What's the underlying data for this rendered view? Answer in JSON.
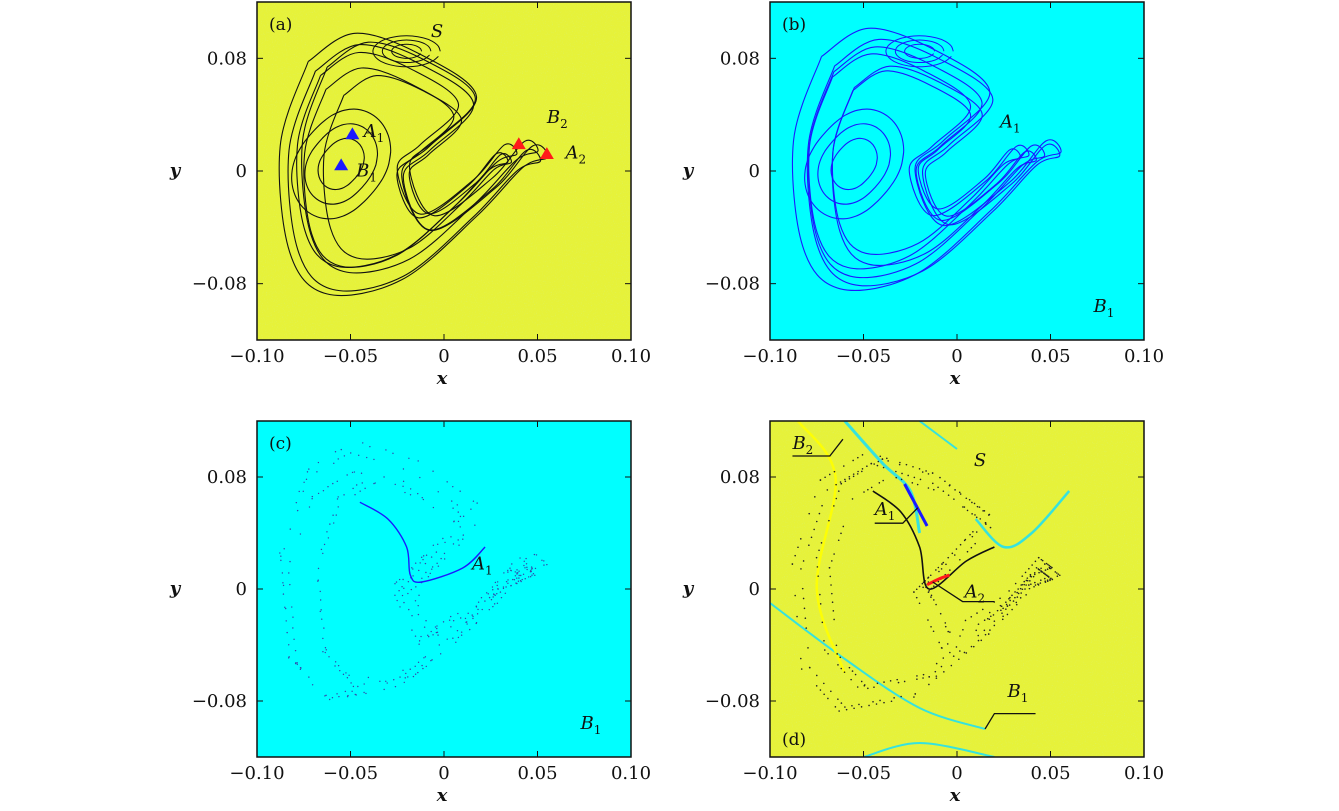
{
  "colors": {
    "yellow_basin": "#e6f23a",
    "cyan_basin": "#00ffff",
    "attractor_black": "#111111",
    "attractor_blue": "#1a1aff",
    "marker_blue": "#1a1aff",
    "marker_red": "#ff1a1a"
  },
  "chart_data": [
    {
      "type": "scatter",
      "panel_label": "(a)",
      "xlabel": "x",
      "ylabel": "y",
      "xlim": [
        -0.1,
        0.1
      ],
      "ylim": [
        -0.12,
        0.12
      ],
      "xticks": [
        -0.1,
        -0.05,
        0,
        0.05,
        0.1
      ],
      "xtick_labels": [
        "−0.10",
        "−0.05",
        "0",
        "0.05",
        "0.10"
      ],
      "yticks": [
        -0.08,
        0,
        0.08
      ],
      "ytick_labels": [
        "−0.08",
        "0",
        "0.08"
      ],
      "background": "yellow",
      "attractor": "black",
      "annotations": [
        {
          "text": "S",
          "sub": "",
          "x": -0.007,
          "y": 0.095
        },
        {
          "text": "A",
          "sub": "1",
          "x": -0.043,
          "y": 0.024
        },
        {
          "text": "B",
          "sub": "1",
          "x": -0.047,
          "y": -0.004
        },
        {
          "text": "B",
          "sub": "2",
          "x": 0.055,
          "y": 0.034
        },
        {
          "text": "A",
          "sub": "2",
          "x": 0.065,
          "y": 0.009
        }
      ],
      "markers": [
        {
          "x": -0.049,
          "y": 0.026,
          "color": "blue",
          "shape": "triangle"
        },
        {
          "x": -0.055,
          "y": 0.004,
          "color": "blue",
          "shape": "triangle"
        },
        {
          "x": 0.04,
          "y": 0.019,
          "color": "red",
          "shape": "triangle"
        },
        {
          "x": 0.055,
          "y": 0.012,
          "color": "red",
          "shape": "triangle"
        }
      ]
    },
    {
      "type": "scatter",
      "panel_label": "(b)",
      "xlabel": "x",
      "ylabel": "y",
      "xlim": [
        -0.1,
        0.1
      ],
      "ylim": [
        -0.12,
        0.12
      ],
      "xticks": [
        -0.1,
        -0.05,
        0,
        0.05,
        0.1
      ],
      "xtick_labels": [
        "−0.10",
        "−0.05",
        "0",
        "0.05",
        "0.10"
      ],
      "yticks": [
        -0.08,
        0,
        0.08
      ],
      "ytick_labels": [
        "−0.08",
        "0",
        "0.08"
      ],
      "background": "cyan",
      "attractor": "blue",
      "annotations": [
        {
          "text": "A",
          "sub": "1",
          "x": 0.023,
          "y": 0.031
        },
        {
          "text": "B",
          "sub": "1",
          "x": 0.073,
          "y": -0.1
        }
      ],
      "markers": []
    },
    {
      "type": "scatter",
      "panel_label": "(c)",
      "xlabel": "x",
      "ylabel": "y",
      "xlim": [
        -0.1,
        0.1
      ],
      "ylim": [
        -0.12,
        0.12
      ],
      "xticks": [
        -0.1,
        -0.05,
        0,
        0.05,
        0.1
      ],
      "xtick_labels": [
        "−0.10",
        "−0.05",
        "0",
        "0.05",
        "0.10"
      ],
      "yticks": [
        -0.08,
        0,
        0.08
      ],
      "ytick_labels": [
        "−0.08",
        "0",
        "0.08"
      ],
      "background": "cyan",
      "attractor": "sparse",
      "annotations": [
        {
          "text": "A",
          "sub": "1",
          "x": 0.015,
          "y": 0.014
        },
        {
          "text": "B",
          "sub": "1",
          "x": 0.073,
          "y": -0.1
        }
      ],
      "markers": []
    },
    {
      "type": "scatter",
      "panel_label": "(d)",
      "xlabel": "x",
      "ylabel": "y",
      "xlim": [
        -0.1,
        0.1
      ],
      "ylim": [
        -0.12,
        0.12
      ],
      "xticks": [
        -0.1,
        -0.05,
        0,
        0.05,
        0.1
      ],
      "xtick_labels": [
        "−0.10",
        "−0.05",
        "0",
        "0.05",
        "0.10"
      ],
      "yticks": [
        -0.08,
        0,
        0.08
      ],
      "ytick_labels": [
        "−0.08",
        "0",
        "0.08"
      ],
      "background": "yellow",
      "attractor": "mixed",
      "annotations": [
        {
          "text": "S",
          "sub": "",
          "x": 0.009,
          "y": 0.088
        },
        {
          "text": "B",
          "sub": "2",
          "x": -0.088,
          "y": 0.1
        },
        {
          "text": "A",
          "sub": "1",
          "x": -0.044,
          "y": 0.053
        },
        {
          "text": "A",
          "sub": "2",
          "x": 0.004,
          "y": -0.006
        },
        {
          "text": "B",
          "sub": "1",
          "x": 0.027,
          "y": -0.077
        }
      ],
      "leaders": [
        {
          "from": [
            -0.088,
            0.095
          ],
          "via": [
            -0.068,
            0.095
          ],
          "to": [
            -0.061,
            0.107
          ]
        },
        {
          "from": [
            -0.044,
            0.047
          ],
          "via": [
            -0.029,
            0.047
          ],
          "to": [
            -0.021,
            0.058
          ]
        },
        {
          "from": [
            0.02,
            -0.009
          ],
          "via": [
            0.003,
            -0.009
          ],
          "to": [
            -0.013,
            0.005
          ]
        },
        {
          "from": [
            0.042,
            -0.089
          ],
          "via": [
            0.02,
            -0.089
          ],
          "to": [
            0.015,
            -0.1
          ]
        }
      ],
      "markers": []
    }
  ]
}
